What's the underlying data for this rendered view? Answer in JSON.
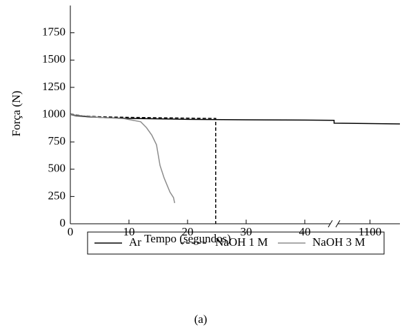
{
  "chart_data": {
    "type": "line",
    "caption": "(a)",
    "x_label": "Tempo (segundos)",
    "y_label": "Força (N)",
    "ylim": [
      0,
      2000
    ],
    "yticks": [
      0,
      250,
      500,
      750,
      1000,
      1250,
      1500,
      1750
    ],
    "x_segments": [
      {
        "xlim": [
          0,
          45
        ],
        "xticks": [
          0,
          10,
          20,
          30,
          40
        ]
      },
      {
        "xlim": [
          1094,
          1105
        ],
        "xticks": [
          1100
        ]
      }
    ],
    "series": [
      {
        "name": "Ar",
        "color": "#000000",
        "dash": "solid",
        "x": [
          0,
          1,
          3,
          6,
          10,
          20,
          30,
          40,
          45,
          1094,
          1105
        ],
        "values": [
          1000,
          990,
          980,
          972,
          965,
          957,
          953,
          950,
          948,
          922,
          915
        ]
      },
      {
        "name": "NaOH 1 M",
        "color": "#000000",
        "dash": "dashed",
        "x": [
          0,
          2,
          5,
          10,
          20,
          24.8,
          24.8
        ],
        "values": [
          1005,
          990,
          980,
          975,
          968,
          965,
          0
        ]
      },
      {
        "name": "NaOH 3 M",
        "color": "#8c8c8c",
        "dash": "solid",
        "x": [
          0,
          5,
          9.2,
          12,
          13,
          13.9,
          14.7,
          15.3,
          16,
          17,
          17.6,
          17.8
        ],
        "values": [
          1000,
          975,
          963,
          935,
          880,
          812,
          724,
          535,
          420,
          290,
          240,
          190
        ]
      }
    ]
  }
}
